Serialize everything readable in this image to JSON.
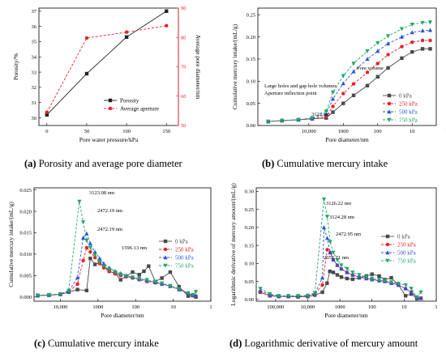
{
  "captions": {
    "a": {
      "label": "(a)",
      "text": " Porosity and average pore diameter"
    },
    "b": {
      "label": "(b)",
      "text": " Cumulative mercury intake"
    },
    "c": {
      "label": "(c)",
      "text": " Cumulative mercury intake"
    },
    "d": {
      "label": "(d)",
      "text": " Logarithmic derivative of mercury amount"
    }
  },
  "chart_data": [
    {
      "id": "a",
      "type": "line",
      "xlabel": "Pore water pressure/kPa",
      "ylabel": "Porosity/%",
      "y2label": "Average pore diameter/nm",
      "x": [
        0,
        50,
        100,
        150
      ],
      "xlim": [
        -10,
        165
      ],
      "ylim": [
        29.5,
        37.2
      ],
      "y2lim": [
        50,
        90
      ],
      "xticks": [
        "0",
        "50",
        "100",
        "150"
      ],
      "yticks": [
        "30",
        "31",
        "32",
        "33",
        "34",
        "35",
        "36",
        "37"
      ],
      "y2ticks": [
        "50",
        "60",
        "70",
        "80",
        "90"
      ],
      "legend_position": "bottom-right",
      "series": [
        {
          "name": "Porosity",
          "axis": "left",
          "color": "#222222",
          "dash": false,
          "marker": "square",
          "values": [
            30.2,
            32.9,
            35.3,
            37.0
          ]
        },
        {
          "name": "Average aperture",
          "axis": "right",
          "color": "#e8202a",
          "dash": true,
          "marker": "circle",
          "values": [
            54.5,
            79.8,
            81.8,
            84.0
          ]
        }
      ]
    },
    {
      "id": "b",
      "type": "line",
      "xscale": "log-reversed",
      "xlabel": "Pore diameter/nm",
      "ylabel": "Cumulative mercury intake/(mL/g)",
      "xlim": [
        300000,
        2
      ],
      "ylim": [
        0,
        0.265
      ],
      "xticks": [
        "10,000",
        "1000",
        "100",
        "10",
        "1"
      ],
      "yticks": [
        "0.00",
        "0.05",
        "0.10",
        "0.15",
        "0.20",
        "0.25"
      ],
      "legend_position": "bottom-right",
      "annotations": [
        "Large holes and gap hole volumes",
        "Aperture inflection point",
        "3122 nm",
        "Pore volume"
      ],
      "series": [
        {
          "name": "0 kPa",
          "color": "#4a4a4a",
          "marker": "square",
          "x": [
            150000,
            60000,
            20000,
            8000,
            3122,
            2000,
            1000,
            500,
            200,
            100,
            50,
            20,
            10,
            5,
            3
          ],
          "values": [
            0.009,
            0.011,
            0.013,
            0.015,
            0.017,
            0.03,
            0.05,
            0.068,
            0.09,
            0.11,
            0.13,
            0.152,
            0.166,
            0.173,
            0.173
          ]
        },
        {
          "name": "250 kPa",
          "color": "#e8202a",
          "marker": "circle",
          "x": [
            150000,
            60000,
            20000,
            8000,
            3122,
            2000,
            1000,
            500,
            200,
            100,
            50,
            20,
            10,
            5,
            3
          ],
          "values": [
            0.009,
            0.011,
            0.013,
            0.015,
            0.02,
            0.043,
            0.072,
            0.094,
            0.12,
            0.14,
            0.16,
            0.178,
            0.188,
            0.192,
            0.192
          ]
        },
        {
          "name": "500 kPa",
          "color": "#2a55d6",
          "marker": "triangle-up",
          "x": [
            150000,
            60000,
            20000,
            8000,
            3122,
            2000,
            1000,
            500,
            200,
            100,
            50,
            20,
            10,
            5,
            3
          ],
          "values": [
            0.009,
            0.011,
            0.013,
            0.016,
            0.026,
            0.06,
            0.095,
            0.122,
            0.15,
            0.168,
            0.185,
            0.2,
            0.21,
            0.214,
            0.215
          ]
        },
        {
          "name": "750 kPa",
          "color": "#1fa864",
          "marker": "triangle-down",
          "x": [
            150000,
            60000,
            20000,
            8000,
            3122,
            2000,
            1000,
            500,
            200,
            100,
            50,
            20,
            10,
            5,
            3
          ],
          "values": [
            0.009,
            0.011,
            0.013,
            0.017,
            0.032,
            0.075,
            0.112,
            0.14,
            0.168,
            0.186,
            0.202,
            0.218,
            0.228,
            0.232,
            0.233
          ]
        }
      ]
    },
    {
      "id": "c",
      "type": "line",
      "xscale": "log-reversed",
      "xlabel": "Pore diameter/nm",
      "ylabel": "Cumulative mercury intake/(mL/g)",
      "xlim": [
        50000,
        1
      ],
      "ylim": [
        -0.001,
        0.0255
      ],
      "xticks": [
        "10,000",
        "1000",
        "100",
        "10",
        "1"
      ],
      "yticks": [
        "0.000",
        "0.005",
        "0.010",
        "0.015",
        "0.020",
        "0.025"
      ],
      "legend_position": "right",
      "annotations": [
        "3123.08 nm",
        "2472.19 nm",
        "2472.19 nm",
        "1596.13 nm"
      ],
      "series": [
        {
          "name": "0 kPa",
          "color": "#4a4a4a",
          "marker": "square",
          "x": [
            40000,
            20000,
            10000,
            6000,
            3500,
            2000,
            1600,
            1200,
            900,
            700,
            500,
            350,
            250,
            180,
            120,
            80,
            60,
            45,
            30,
            20,
            12,
            7,
            4,
            3,
            2.5
          ],
          "values": [
            0.0003,
            0.0004,
            0.0006,
            0.0011,
            0.0017,
            0.0015,
            0.009,
            0.0076,
            0.008,
            0.0072,
            0.006,
            0.0055,
            0.004,
            0.0048,
            0.0058,
            0.0052,
            0.006,
            0.0072,
            0.0036,
            0.0044,
            0.0058,
            0.0024,
            0.0002,
            0.0003,
            0.0
          ]
        },
        {
          "name": "250 kPa",
          "color": "#e8202a",
          "marker": "circle",
          "x": [
            40000,
            20000,
            10000,
            6000,
            3500,
            2472,
            2000,
            1600,
            1200,
            900,
            700,
            500,
            350,
            250,
            180,
            120,
            80,
            50,
            30,
            20,
            12,
            7,
            4,
            3,
            2.5
          ],
          "values": [
            0.0003,
            0.0004,
            0.0006,
            0.0012,
            0.003,
            0.0085,
            0.0115,
            0.0105,
            0.0092,
            0.0078,
            0.0068,
            0.006,
            0.0054,
            0.005,
            0.0047,
            0.0044,
            0.004,
            0.0036,
            0.0033,
            0.003,
            0.0025,
            0.0018,
            0.0008,
            0.0003,
            0.0002
          ]
        },
        {
          "name": "500 kPa",
          "color": "#2a55d6",
          "marker": "triangle-up",
          "x": [
            40000,
            20000,
            10000,
            6000,
            3500,
            2472,
            2000,
            1600,
            1200,
            900,
            700,
            500,
            350,
            250,
            180,
            120,
            80,
            50,
            30,
            20,
            12,
            7,
            4,
            3,
            2.5
          ],
          "values": [
            0.0003,
            0.0004,
            0.0006,
            0.0013,
            0.0045,
            0.0138,
            0.0148,
            0.0125,
            0.0105,
            0.009,
            0.0078,
            0.0068,
            0.006,
            0.0055,
            0.005,
            0.0046,
            0.0042,
            0.0038,
            0.0034,
            0.003,
            0.0025,
            0.0017,
            0.0008,
            0.0004,
            0.0003
          ]
        },
        {
          "name": "750 kPa",
          "color": "#1fa864",
          "marker": "triangle-down",
          "x": [
            40000,
            20000,
            10000,
            6000,
            3123,
            2472,
            2000,
            1600,
            1200,
            900,
            700,
            500,
            350,
            250,
            180,
            120,
            80,
            50,
            30,
            20,
            12,
            7,
            4,
            3,
            2.5
          ],
          "values": [
            0.0004,
            0.0005,
            0.0007,
            0.0015,
            0.0223,
            0.0175,
            0.0132,
            0.0115,
            0.0098,
            0.0082,
            0.0072,
            0.0064,
            0.0058,
            0.0052,
            0.0049,
            0.0046,
            0.0043,
            0.004,
            0.0036,
            0.0032,
            0.0026,
            0.0019,
            0.0009,
            0.0005,
            0.0012
          ]
        }
      ]
    },
    {
      "id": "d",
      "type": "line",
      "xscale": "log-reversed",
      "xlabel": "Pore diameter/nm",
      "ylabel": "Logarithmic derivative of mercury amount/(mL/g)",
      "xlim": [
        400000,
        1
      ],
      "ylim": [
        -0.005,
        0.31
      ],
      "xticks": [
        "100,000",
        "10,000",
        "1000",
        "100",
        "10",
        "1"
      ],
      "yticks": [
        "0.00",
        "0.05",
        "0.10",
        "0.15",
        "0.20",
        "0.25",
        "0.30"
      ],
      "legend_position": "right",
      "annotations": [
        "3126.22 nm",
        "3124.28 nm",
        "2472.95 nm",
        "2052.71 nm"
      ],
      "series": [
        {
          "name": "0 kPa",
          "color": "#4a4a4a",
          "marker": "square",
          "x": [
            300000,
            150000,
            80000,
            40000,
            20000,
            10000,
            6000,
            3500,
            2500,
            2052,
            1600,
            1200,
            900,
            600,
            400,
            250,
            150,
            100,
            60,
            40,
            25,
            15,
            9,
            6,
            4,
            3
          ],
          "values": [
            0.02,
            0.01,
            0.008,
            0.008,
            0.007,
            0.008,
            0.012,
            0.02,
            0.045,
            0.078,
            0.075,
            0.068,
            0.062,
            0.058,
            0.056,
            0.06,
            0.065,
            0.07,
            0.065,
            0.055,
            0.06,
            0.04,
            0.01,
            0.015,
            0.002,
            0.003
          ]
        },
        {
          "name": "250 kPa",
          "color": "#e8202a",
          "marker": "circle",
          "x": [
            300000,
            150000,
            80000,
            40000,
            20000,
            10000,
            6000,
            3500,
            2472,
            2000,
            1600,
            1200,
            900,
            600,
            400,
            250,
            150,
            100,
            60,
            40,
            25,
            15,
            9,
            6,
            4,
            3
          ],
          "values": [
            0.02,
            0.01,
            0.008,
            0.008,
            0.008,
            0.009,
            0.014,
            0.04,
            0.138,
            0.13,
            0.11,
            0.095,
            0.085,
            0.075,
            0.068,
            0.062,
            0.058,
            0.055,
            0.052,
            0.05,
            0.045,
            0.04,
            0.03,
            0.02,
            0.006,
            0.003
          ]
        },
        {
          "name": "500 kPa",
          "color": "#2a55d6",
          "marker": "triangle-up",
          "x": [
            300000,
            150000,
            80000,
            40000,
            20000,
            10000,
            6000,
            3500,
            3124,
            2472,
            2000,
            1600,
            1200,
            900,
            600,
            400,
            250,
            150,
            100,
            60,
            40,
            25,
            15,
            9,
            6,
            4,
            3
          ],
          "values": [
            0.025,
            0.012,
            0.009,
            0.009,
            0.009,
            0.01,
            0.016,
            0.06,
            0.2,
            0.17,
            0.13,
            0.11,
            0.095,
            0.085,
            0.075,
            0.068,
            0.062,
            0.058,
            0.055,
            0.052,
            0.05,
            0.045,
            0.04,
            0.03,
            0.02,
            0.006,
            0.003
          ]
        },
        {
          "name": "750 kPa",
          "color": "#1fa864",
          "marker": "triangle-down",
          "x": [
            300000,
            150000,
            80000,
            40000,
            20000,
            10000,
            6000,
            3126,
            2472,
            2000,
            1600,
            1200,
            900,
            600,
            400,
            250,
            150,
            100,
            60,
            40,
            25,
            15,
            9,
            6,
            4,
            3
          ],
          "values": [
            0.03,
            0.015,
            0.01,
            0.01,
            0.01,
            0.011,
            0.018,
            0.278,
            0.23,
            0.16,
            0.13,
            0.11,
            0.095,
            0.085,
            0.075,
            0.068,
            0.062,
            0.058,
            0.055,
            0.052,
            0.048,
            0.044,
            0.04,
            0.03,
            0.006,
            0.02
          ]
        }
      ]
    }
  ]
}
